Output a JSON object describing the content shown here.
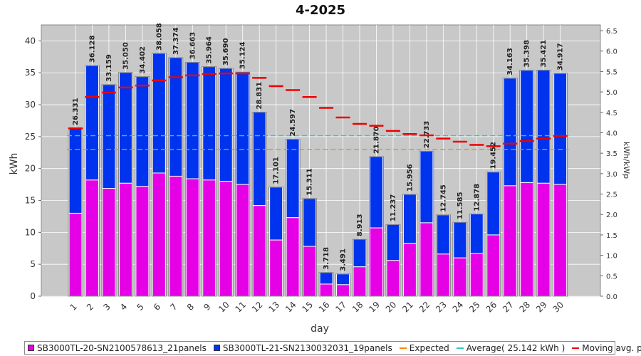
{
  "chart_data": {
    "type": "bar",
    "title": "4-2025",
    "xlabel": "day",
    "ylabel": "kWh",
    "y2label": "kWh/kWp",
    "ylim": [
      0,
      42.5
    ],
    "y2lim": [
      0,
      6.64
    ],
    "yticks": [
      0,
      5,
      10,
      15,
      20,
      25,
      30,
      35,
      40
    ],
    "y2ticks": [
      "0.0",
      "0.5",
      "1.0",
      "1.5",
      "2.0",
      "2.5",
      "3.0",
      "3.5",
      "4.0",
      "4.5",
      "5.0",
      "5.5",
      "6.0",
      "6.5"
    ],
    "grid": true,
    "legend_position": "bottom",
    "categories": [
      "1",
      "2",
      "3",
      "4",
      "5",
      "6",
      "7",
      "8",
      "9",
      "10",
      "11",
      "12",
      "13",
      "14",
      "15",
      "16",
      "17",
      "18",
      "19",
      "20",
      "21",
      "22",
      "23",
      "24",
      "25",
      "26",
      "27",
      "28",
      "29",
      "30"
    ],
    "totals_labels": [
      "26.331",
      "36.128",
      "33.159",
      "35.050",
      "34.402",
      "38.058",
      "37.374",
      "36.663",
      "35.964",
      "35.690",
      "35.124",
      "28.831",
      "17.101",
      "24.597",
      "15.311",
      "3.718",
      "3.491",
      "8.913",
      "21.870",
      "11.237",
      "15.956",
      "22.733",
      "12.745",
      "11.585",
      "12.878",
      "19.452",
      "34.163",
      "35.398",
      "35.421",
      "34.917"
    ],
    "series": [
      {
        "name": "SB3000TL-20-SN2100578613_21panels",
        "color": "#e600e6",
        "values": [
          13.0,
          18.2,
          16.9,
          17.7,
          17.2,
          19.3,
          18.8,
          18.4,
          18.2,
          18.0,
          17.5,
          14.2,
          8.8,
          12.3,
          7.8,
          1.9,
          1.8,
          4.6,
          10.7,
          5.6,
          8.3,
          11.5,
          6.6,
          6.0,
          6.7,
          9.6,
          17.3,
          17.8,
          17.7,
          17.5
        ]
      },
      {
        "name": "SB3000TL-21-SN2130032031_19panels",
        "color": "#0033ee",
        "values": [
          13.331,
          17.928,
          16.259,
          17.35,
          17.202,
          18.758,
          18.574,
          18.263,
          17.764,
          17.69,
          17.624,
          14.631,
          8.301,
          12.297,
          7.511,
          1.818,
          1.691,
          4.313,
          11.17,
          5.637,
          7.656,
          11.233,
          6.145,
          5.585,
          6.178,
          9.852,
          16.863,
          17.598,
          17.721,
          17.417
        ]
      }
    ],
    "expected": {
      "name": "Expected",
      "color": "#ff8800",
      "values": [
        23.0,
        23.0
      ]
    },
    "average": {
      "name": "Average( 25.142 kWh )",
      "color": "#22cccc",
      "value": 25.142
    },
    "moving_avg": {
      "name": "Moving avg. per day.",
      "color": "#ee0000",
      "values": [
        26.3,
        31.2,
        31.9,
        32.7,
        33.0,
        33.8,
        34.3,
        34.6,
        34.8,
        34.9,
        34.9,
        34.2,
        32.9,
        32.3,
        31.2,
        29.5,
        28.0,
        27.0,
        26.7,
        25.9,
        25.4,
        25.2,
        24.7,
        24.2,
        23.7,
        23.5,
        23.9,
        24.3,
        24.7,
        25.1
      ]
    }
  }
}
